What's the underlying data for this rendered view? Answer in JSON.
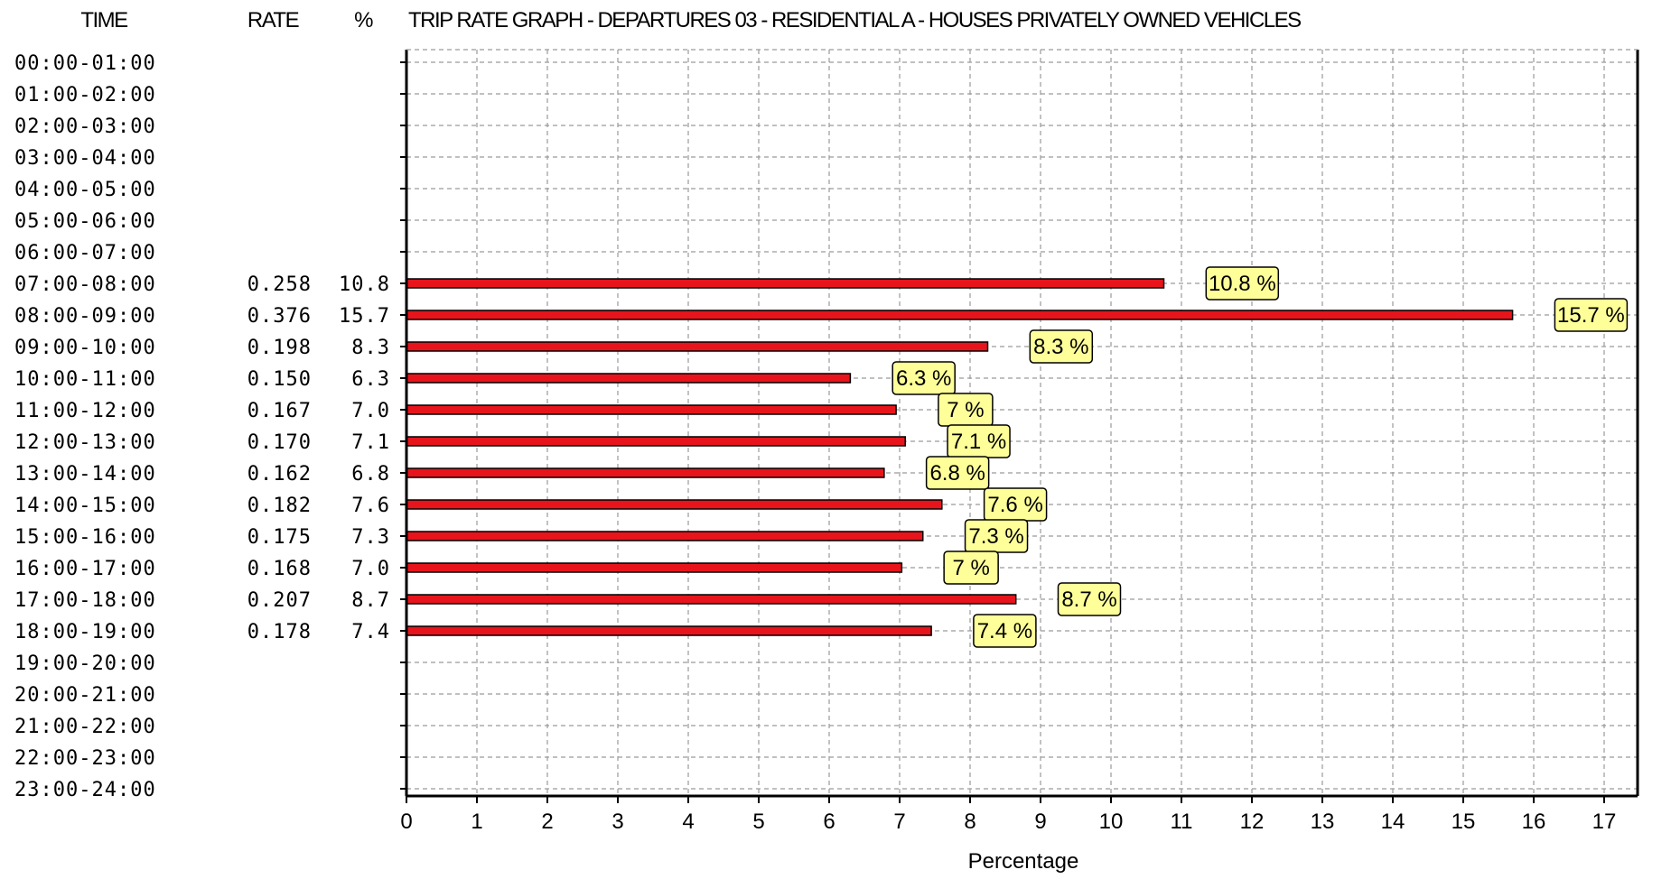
{
  "header": {
    "time_label": "TIME",
    "rate_label": "RATE",
    "pct_label": "%",
    "title": "TRIP RATE GRAPH - DEPARTURES   03 - RESIDENTIAL  A - HOUSES PRIVATELY OWNED      VEHICLES"
  },
  "colors": {
    "bar": "#e8141c",
    "bar_border": "#000000",
    "callout_fill": "#ffff99",
    "callout_border": "#000000",
    "grid": "#9a9a9a"
  },
  "chart_data": {
    "type": "bar",
    "orientation": "horizontal",
    "title": "TRIP RATE GRAPH - DEPARTURES   03 - RESIDENTIAL  A - HOUSES PRIVATELY OWNED      VEHICLES",
    "xlabel": "Percentage",
    "ylabel": "TIME",
    "xlim": [
      0,
      17.5
    ],
    "xticks": [
      0,
      1,
      2,
      3,
      4,
      5,
      6,
      7,
      8,
      9,
      10,
      11,
      12,
      13,
      14,
      15,
      16,
      17
    ],
    "grid": true,
    "categories": [
      "00:00-01:00",
      "01:00-02:00",
      "02:00-03:00",
      "03:00-04:00",
      "04:00-05:00",
      "05:00-06:00",
      "06:00-07:00",
      "07:00-08:00",
      "08:00-09:00",
      "09:00-10:00",
      "10:00-11:00",
      "11:00-12:00",
      "12:00-13:00",
      "13:00-14:00",
      "14:00-15:00",
      "15:00-16:00",
      "16:00-17:00",
      "17:00-18:00",
      "18:00-19:00",
      "19:00-20:00",
      "20:00-21:00",
      "21:00-22:00",
      "22:00-23:00",
      "23:00-24:00"
    ],
    "rates": [
      "",
      "",
      "",
      "",
      "",
      "",
      "",
      "0.258",
      "0.376",
      "0.198",
      "0.150",
      "0.167",
      "0.170",
      "0.162",
      "0.182",
      "0.175",
      "0.168",
      "0.207",
      "0.178",
      "",
      "",
      "",
      "",
      ""
    ],
    "percents": [
      "",
      "",
      "",
      "",
      "",
      "",
      "",
      "10.8",
      "15.7",
      "8.3",
      "6.3",
      "7.0",
      "7.1",
      "6.8",
      "7.6",
      "7.3",
      "7.0",
      "8.7",
      "7.4",
      "",
      "",
      "",
      "",
      ""
    ],
    "values": [
      null,
      null,
      null,
      null,
      null,
      null,
      null,
      10.75,
      15.7,
      8.25,
      6.3,
      6.95,
      7.08,
      6.78,
      7.6,
      7.33,
      7.03,
      8.65,
      7.45,
      null,
      null,
      null,
      null,
      null
    ],
    "data_labels": [
      "",
      "",
      "",
      "",
      "",
      "",
      "",
      "10.8 %",
      "15.7 %",
      "8.3 %",
      "6.3 %",
      "7 %",
      "7.1 %",
      "6.8 %",
      "7.6 %",
      "7.3 %",
      "7 %",
      "8.7 %",
      "7.4 %",
      "",
      "",
      "",
      "",
      ""
    ]
  }
}
